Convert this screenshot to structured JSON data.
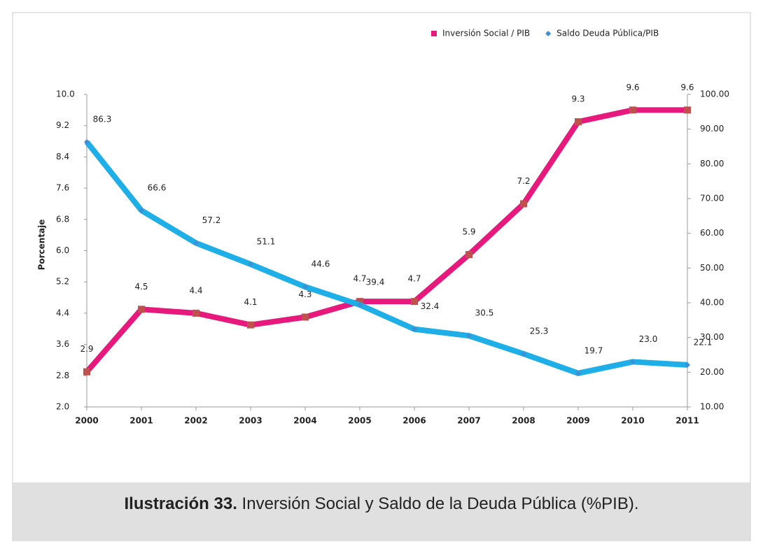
{
  "chart_data": {
    "type": "line",
    "categories": [
      "2000",
      "2001",
      "2002",
      "2003",
      "2004",
      "2005",
      "2006",
      "2007",
      "2008",
      "2009",
      "2010",
      "2011"
    ],
    "y_label": "Porcentaje",
    "series": [
      {
        "name": "Inversión Social / PIB",
        "color": "#e8197d",
        "marker_color": "#c0504d",
        "values": [
          2.9,
          4.5,
          4.4,
          4.1,
          4.3,
          4.7,
          4.7,
          5.9,
          7.2,
          9.3,
          9.6,
          9.6
        ]
      },
      {
        "name": "Saldo Deuda Pública/PIB",
        "color": "#1eaee8",
        "marker_color": "#3d8fd6",
        "axis": "y2",
        "values": [
          86.3,
          66.6,
          57.2,
          51.1,
          44.6,
          39.4,
          32.4,
          30.5,
          25.3,
          19.7,
          23.0,
          22.1
        ],
        "value_labels": [
          "86.3",
          "66.6",
          "57.2",
          "51.1",
          "44.6",
          "39.4",
          "32.4",
          "30.5",
          "25.3",
          "19.7",
          "23.0",
          "22.1"
        ]
      }
    ],
    "ylim": [
      2,
      10
    ],
    "yticks": [
      {
        "value": 2,
        "label": "2.0"
      },
      2.8,
      3.6,
      4.4,
      5.2,
      {
        "value": 6,
        "label": "6.0"
      },
      6.8,
      7.6,
      8.4,
      9.2,
      {
        "value": 10,
        "label": "10.0"
      }
    ],
    "y2lim": [
      10,
      100
    ],
    "y2ticks": [
      {
        "value": 10,
        "label": "10.00"
      },
      {
        "value": 20,
        "label": "20.00"
      },
      {
        "value": 30,
        "label": "30.00"
      },
      {
        "value": 40,
        "label": "40.00"
      },
      {
        "value": 50,
        "label": "50.00"
      },
      {
        "value": 60,
        "label": "60.00"
      },
      {
        "value": 70,
        "label": "70.00"
      },
      {
        "value": 80,
        "label": "80.00"
      },
      {
        "value": 90,
        "label": "90.00"
      },
      {
        "value": 100,
        "label": "100.00"
      }
    ],
    "legend": "top-right"
  },
  "caption": {
    "label": "Ilustración 33.",
    "text": "Inversión Social y Saldo de la Deuda Pública (%PIB)."
  }
}
